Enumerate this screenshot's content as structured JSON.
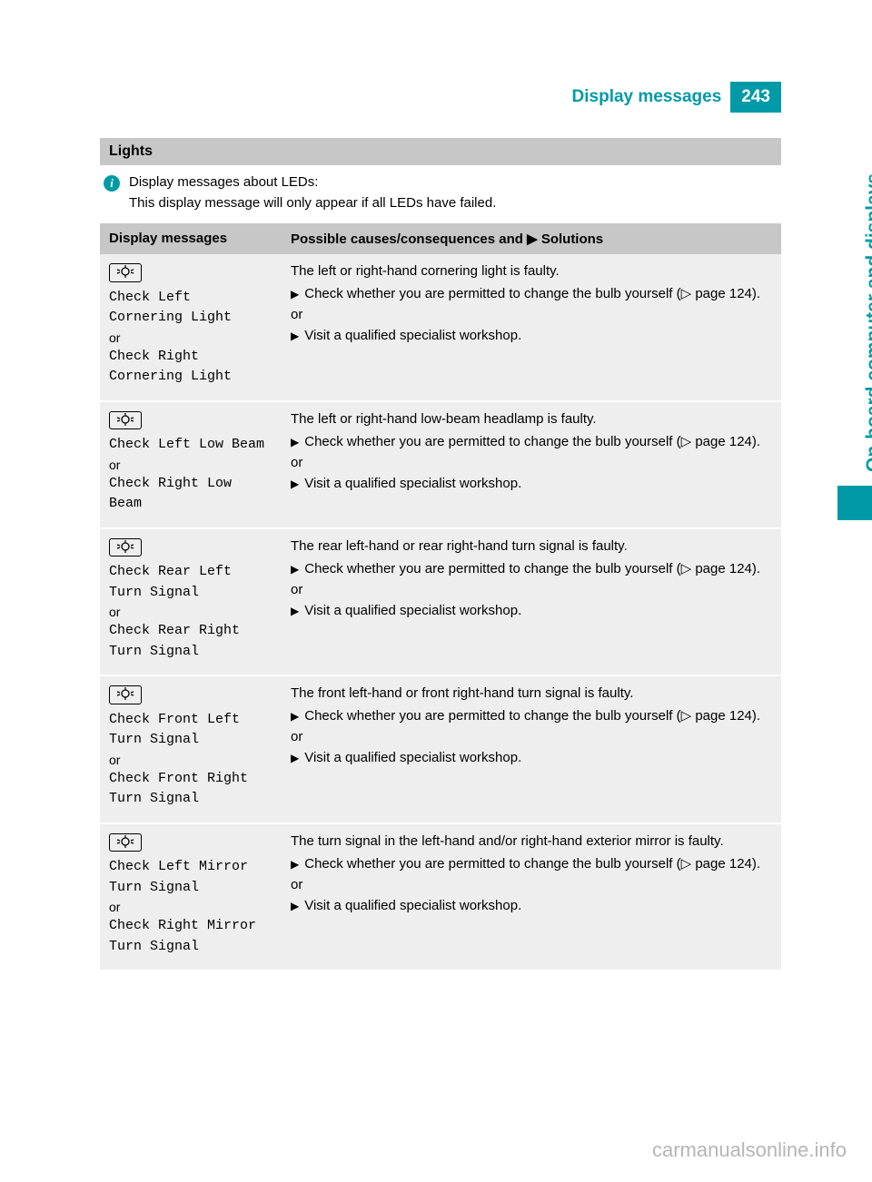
{
  "header": {
    "title": "Display messages",
    "page": "243"
  },
  "side_tab": "On-board computer and displays",
  "section": "Lights",
  "info": {
    "line1": "Display messages about LEDs:",
    "line2": "This display message will only appear if all LEDs have failed."
  },
  "table": {
    "head": {
      "c1": "Display messages",
      "c2": "Possible causes/consequences and ▶ Solutions"
    },
    "rows": [
      {
        "msg1": "Check Left\nCornering Light",
        "or": "or",
        "msg2": "Check Right\nCornering Light",
        "cause": "The left or right-hand cornering light is faulty.",
        "sol1": "Check whether you are permitted to change the bulb yourself (▷ page 124).",
        "divider": "or",
        "sol2": "Visit a qualified specialist workshop."
      },
      {
        "msg1": "Check Left Low Beam",
        "or": "or",
        "msg2": "Check Right Low\nBeam",
        "cause": "The left or right-hand low-beam headlamp is faulty.",
        "sol1": "Check whether you are permitted to change the bulb yourself (▷ page 124).",
        "divider": "or",
        "sol2": "Visit a qualified specialist workshop."
      },
      {
        "msg1": "Check Rear Left\nTurn Signal",
        "or": "or",
        "msg2": "Check Rear Right\nTurn Signal",
        "cause": "The rear left-hand or rear right-hand turn signal is faulty.",
        "sol1": "Check whether you are permitted to change the bulb yourself (▷ page 124).",
        "divider": "or",
        "sol2": "Visit a qualified specialist workshop."
      },
      {
        "msg1": "Check Front Left\nTurn Signal",
        "or": "or",
        "msg2": "Check Front Right\nTurn Signal",
        "cause": "The front left-hand or front right-hand turn signal is faulty.",
        "sol1": "Check whether you are permitted to change the bulb yourself (▷ page 124).",
        "divider": "or",
        "sol2": "Visit a qualified specialist workshop."
      },
      {
        "msg1": "Check Left Mirror\nTurn Signal",
        "or": "or",
        "msg2": "Check Right Mirror\nTurn Signal",
        "cause": "The turn signal in the left-hand and/or right-hand exterior mirror is faulty.",
        "sol1": "Check whether you are permitted to change the bulb yourself (▷ page 124).",
        "divider": "or",
        "sol2": "Visit a qualified specialist workshop."
      }
    ]
  },
  "icons": {
    "bulb": "⠀💡⠀",
    "info": "i",
    "tri": "▶"
  },
  "watermark": "carmanualsonline.info"
}
